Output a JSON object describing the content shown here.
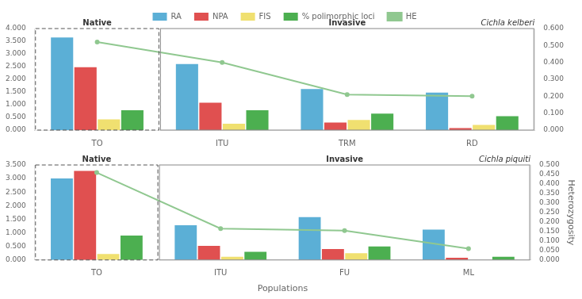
{
  "chart_data": [
    {
      "type": "bar",
      "categories": [
        "TO",
        "ITU",
        "TRM",
        "RD"
      ],
      "series": [
        {
          "name": "RA",
          "color": "#5BAFD6",
          "values": [
            3.65,
            2.6,
            1.62,
            1.48
          ]
        },
        {
          "name": "NPA",
          "color": "#E05050",
          "values": [
            2.48,
            1.08,
            0.3,
            0.08
          ]
        },
        {
          "name": "FIS",
          "color": "#F0E070",
          "values": [
            0.42,
            0.25,
            0.4,
            0.2
          ]
        },
        {
          "name": "% polimorphic loci",
          "color": "#4CAF50",
          "values": [
            0.78,
            0.78,
            0.65,
            0.55
          ]
        },
        {
          "name": "HE",
          "type": "line",
          "axis": "y2",
          "color": "#90C890",
          "values": [
            0.52,
            0.4,
            0.21,
            0.2
          ]
        }
      ],
      "ylim": [
        0,
        4.0
      ],
      "yticks": [
        {
          "value": 0.0,
          "label": "0.000"
        },
        {
          "value": 0.5,
          "label": "0.500"
        },
        {
          "value": 1.0,
          "label": "1.000"
        },
        {
          "value": 1.5,
          "label": "1.500"
        },
        {
          "value": 2.0,
          "label": "2.000"
        },
        {
          "value": 2.5,
          "label": "2.500"
        },
        {
          "value": 3.0,
          "label": "3.000"
        },
        {
          "value": 3.5,
          "label": "3.500"
        },
        {
          "value": 4.0,
          "label": "4.000"
        }
      ],
      "y2lim": [
        0,
        0.6
      ],
      "y2ticks": [
        {
          "value": 0.0,
          "label": "0.000"
        },
        {
          "value": 0.1,
          "label": "0.100"
        },
        {
          "value": 0.2,
          "label": "0.200"
        },
        {
          "value": 0.3,
          "label": "0.300"
        },
        {
          "value": 0.4,
          "label": "0.400"
        },
        {
          "value": 0.5,
          "label": "0.500"
        },
        {
          "value": 0.6,
          "label": "0.600"
        }
      ],
      "annotations": [
        {
          "text": "Cichla kelberi"
        },
        {
          "text": "Native",
          "categories": [
            "TO"
          ],
          "line_style": "dashed"
        },
        {
          "text": "Invasive",
          "categories": [
            "ITU",
            "TRM",
            "RD"
          ],
          "line_style": "solid"
        }
      ],
      "grid": false,
      "legend": "top"
    },
    {
      "type": "bar",
      "categories": [
        "TO",
        "ITU",
        "FU",
        "ML"
      ],
      "series": [
        {
          "name": "RA",
          "color": "#5BAFD6",
          "values": [
            3.0,
            1.28,
            1.58,
            1.12
          ]
        },
        {
          "name": "NPA",
          "color": "#E05050",
          "values": [
            3.28,
            0.52,
            0.4,
            0.08
          ]
        },
        {
          "name": "FIS",
          "color": "#F0E070",
          "values": [
            0.22,
            0.12,
            0.25,
            0.0
          ]
        },
        {
          "name": "% polimorphic loci",
          "color": "#4CAF50",
          "values": [
            0.9,
            0.3,
            0.5,
            0.12
          ]
        },
        {
          "name": "HE",
          "type": "line",
          "axis": "y2",
          "color": "#90C890",
          "values": [
            0.46,
            0.165,
            0.155,
            0.06
          ]
        }
      ],
      "xlabel": "Populations",
      "y2label": "Heterozygosity",
      "ylim": [
        0,
        3.5
      ],
      "yticks": [
        {
          "value": 0.0,
          "label": "0.000"
        },
        {
          "value": 0.5,
          "label": "0.500"
        },
        {
          "value": 1.0,
          "label": "1.000"
        },
        {
          "value": 1.5,
          "label": "1.500"
        },
        {
          "value": 2.0,
          "label": "2.000"
        },
        {
          "value": 2.5,
          "label": "2.500"
        },
        {
          "value": 3.0,
          "label": "3.000"
        },
        {
          "value": 3.5,
          "label": "3.500"
        }
      ],
      "y2lim": [
        0,
        0.5
      ],
      "y2ticks": [
        {
          "value": 0.0,
          "label": "0.000"
        },
        {
          "value": 0.05,
          "label": "0.050"
        },
        {
          "value": 0.1,
          "label": "0.100"
        },
        {
          "value": 0.15,
          "label": "0.150"
        },
        {
          "value": 0.2,
          "label": "0.200"
        },
        {
          "value": 0.25,
          "label": "0.250"
        },
        {
          "value": 0.3,
          "label": "0.300"
        },
        {
          "value": 0.35,
          "label": "0.350"
        },
        {
          "value": 0.4,
          "label": "0.400"
        },
        {
          "value": 0.45,
          "label": "0.450"
        },
        {
          "value": 0.5,
          "label": "0.500"
        }
      ],
      "annotations": [
        {
          "text": "Cichla piquiti"
        },
        {
          "text": "Native",
          "categories": [
            "TO"
          ],
          "line_style": "dashed"
        },
        {
          "text": "Invasive",
          "categories": [
            "ITU",
            "FU",
            "ML"
          ],
          "line_style": "solid"
        }
      ],
      "grid": false
    }
  ]
}
